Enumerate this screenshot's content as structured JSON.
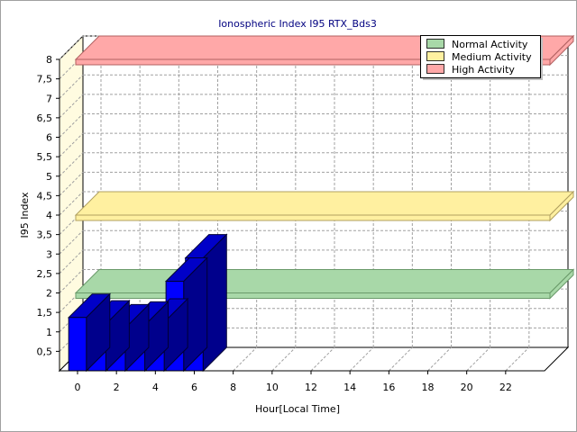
{
  "chart_data": {
    "type": "bar",
    "title": "Ionospheric Index I95 RTX_Bds3",
    "xlabel": "Hour[Local Time]",
    "ylabel": "I95 Index",
    "xticks": [
      "0",
      "2",
      "4",
      "6",
      "8",
      "10",
      "12",
      "14",
      "16",
      "18",
      "20",
      "22"
    ],
    "yticks": [
      "0,5",
      "1",
      "1,5",
      "2",
      "2,5",
      "3",
      "3,5",
      "4",
      "4,5",
      "5",
      "5,5",
      "6",
      "6,5",
      "7",
      "7,5",
      "8"
    ],
    "ylim": [
      0,
      8
    ],
    "xlim": [
      0,
      24
    ],
    "grid": true,
    "legend_position": "top-right",
    "x": [
      0,
      1,
      2,
      3,
      4,
      5,
      6
    ],
    "values": [
      1.37,
      1.2,
      1.1,
      1.17,
      1.25,
      2.3,
      2.9
    ],
    "bar_color": "#0000ff",
    "bands": [
      {
        "name": "Normal Activity",
        "value": 2.0,
        "color": "#a8d8a8",
        "edge": "#6a9a6a"
      },
      {
        "name": "Medium Activity",
        "value": 4.0,
        "color": "#fff0a0",
        "edge": "#b0a060"
      },
      {
        "name": "High Activity",
        "value": 8.0,
        "color": "#ffa8a8",
        "edge": "#b06060"
      }
    ]
  }
}
